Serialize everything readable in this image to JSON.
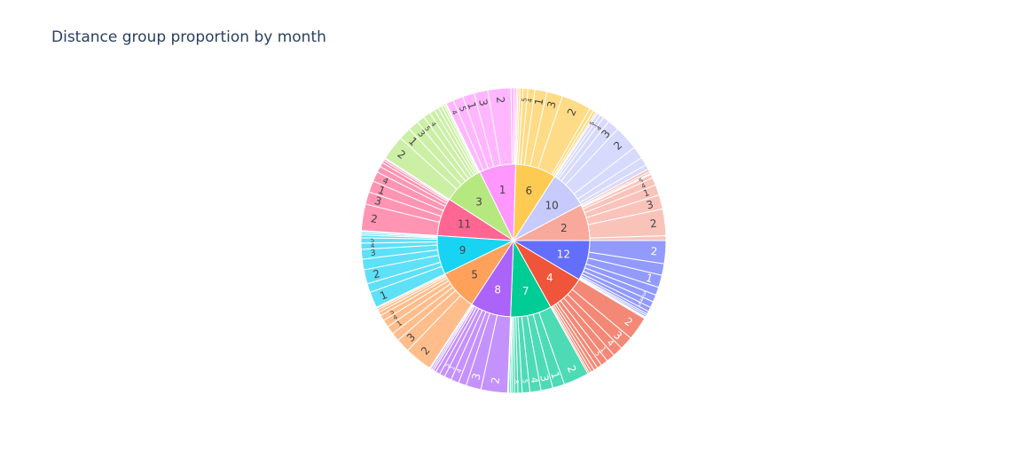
{
  "chart_data": {
    "type": "sunburst",
    "title": "Distance group proportion by month",
    "months": [
      {
        "label": "12",
        "color": "#636efa",
        "value": 8.6,
        "children": [
          {
            "label": "2",
            "value": 26
          },
          {
            "label": "",
            "value": 13
          },
          {
            "label": "1",
            "value": 14
          },
          {
            "label": "",
            "value": 9
          },
          {
            "label": "3",
            "value": 8
          },
          {
            "label": "4",
            "value": 7
          },
          {
            "label": "5",
            "value": 5
          },
          {
            "label": "",
            "value": 3
          },
          {
            "label": "",
            "value": 2
          },
          {
            "label": "",
            "value": 2
          },
          {
            "label": "",
            "value": 1
          },
          {
            "label": "",
            "value": 1
          }
        ]
      },
      {
        "label": "4",
        "color": "#ef553b",
        "value": 8.4,
        "children": [
          {
            "label": "2",
            "value": 30
          },
          {
            "label": "3",
            "value": 17
          },
          {
            "label": "4",
            "value": 13
          },
          {
            "label": "1",
            "value": 11
          },
          {
            "label": "5",
            "value": 9
          },
          {
            "label": "",
            "value": 6
          },
          {
            "label": "",
            "value": 5
          },
          {
            "label": "",
            "value": 4
          },
          {
            "label": "",
            "value": 3
          },
          {
            "label": "",
            "value": 2
          }
        ]
      },
      {
        "label": "7",
        "color": "#00cc96",
        "value": 8.8,
        "children": [
          {
            "label": "2",
            "value": 30
          },
          {
            "label": "1",
            "value": 14
          },
          {
            "label": "3",
            "value": 14
          },
          {
            "label": "4",
            "value": 13
          },
          {
            "label": "5",
            "value": 9
          },
          {
            "label": "",
            "value": 5
          },
          {
            "label": "8",
            "value": 4
          },
          {
            "label": "",
            "value": 3
          },
          {
            "label": "",
            "value": 2
          },
          {
            "label": "",
            "value": 2
          },
          {
            "label": "",
            "value": 1
          }
        ]
      },
      {
        "label": "8",
        "color": "#ab63fa",
        "value": 8.7,
        "children": [
          {
            "label": "2",
            "value": 30
          },
          {
            "label": "3",
            "value": 17
          },
          {
            "label": "",
            "value": 9
          },
          {
            "label": "4",
            "value": 9
          },
          {
            "label": "1",
            "value": 8
          },
          {
            "label": "5",
            "value": 6
          },
          {
            "label": "",
            "value": 5
          },
          {
            "label": "",
            "value": 3
          },
          {
            "label": "",
            "value": 2
          },
          {
            "label": "",
            "value": 2
          },
          {
            "label": "",
            "value": 1
          }
        ]
      },
      {
        "label": "5",
        "color": "#ffa15a",
        "value": 8.6,
        "children": [
          {
            "label": "2",
            "value": 30
          },
          {
            "label": "3",
            "value": 15
          },
          {
            "label": "",
            "value": 9
          },
          {
            "label": "1",
            "value": 9
          },
          {
            "label": "4",
            "value": 8
          },
          {
            "label": "5",
            "value": 6
          },
          {
            "label": "",
            "value": 4
          },
          {
            "label": "",
            "value": 3
          },
          {
            "label": "",
            "value": 2
          },
          {
            "label": "",
            "value": 1
          }
        ]
      },
      {
        "label": "9",
        "color": "#19d3f3",
        "value": 8.3,
        "children": [
          {
            "label": "1",
            "value": 18
          },
          {
            "label": "",
            "value": 10
          },
          {
            "label": "2",
            "value": 16
          },
          {
            "label": "",
            "value": 12
          },
          {
            "label": "3",
            "value": 11
          },
          {
            "label": "4",
            "value": 7
          },
          {
            "label": "5",
            "value": 6
          },
          {
            "label": "",
            "value": 3
          },
          {
            "label": "",
            "value": 2
          },
          {
            "label": "",
            "value": 2
          },
          {
            "label": "",
            "value": 1
          }
        ]
      },
      {
        "label": "11",
        "color": "#ff6692",
        "value": 8.1,
        "children": [
          {
            "label": "2",
            "value": 30
          },
          {
            "label": "3",
            "value": 14
          },
          {
            "label": "1",
            "value": 13
          },
          {
            "label": "4",
            "value": 11
          },
          {
            "label": "",
            "value": 7
          },
          {
            "label": "",
            "value": 5
          },
          {
            "label": "",
            "value": 3
          },
          {
            "label": "",
            "value": 2
          },
          {
            "label": "",
            "value": 1
          }
        ]
      },
      {
        "label": "3",
        "color": "#b6e880",
        "value": 8.7,
        "children": [
          {
            "label": "2",
            "value": 28
          },
          {
            "label": "1",
            "value": 14
          },
          {
            "label": "3",
            "value": 12
          },
          {
            "label": "5",
            "value": 9
          },
          {
            "label": "4",
            "value": 8
          },
          {
            "label": "",
            "value": 6
          },
          {
            "label": "",
            "value": 5
          },
          {
            "label": "",
            "value": 4
          },
          {
            "label": "",
            "value": 3
          },
          {
            "label": "",
            "value": 2
          },
          {
            "label": "",
            "value": 1
          }
        ]
      },
      {
        "label": "1",
        "color": "#ff97ff",
        "value": 7.8,
        "children": [
          {
            "label": "4",
            "value": 10
          },
          {
            "label": "5",
            "value": 13
          },
          {
            "label": "1",
            "value": 15
          },
          {
            "label": "3",
            "value": 18
          },
          {
            "label": "2",
            "value": 30
          },
          {
            "label": "",
            "value": 4
          },
          {
            "label": "",
            "value": 3
          },
          {
            "label": "",
            "value": 2
          }
        ]
      },
      {
        "label": "6",
        "color": "#fecb52",
        "value": 8.7,
        "children": [
          {
            "label": "",
            "value": 2
          },
          {
            "label": "",
            "value": 3
          },
          {
            "label": "5",
            "value": 5
          },
          {
            "label": "4",
            "value": 7
          },
          {
            "label": "1",
            "value": 12
          },
          {
            "label": "3",
            "value": 16
          },
          {
            "label": "2",
            "value": 30
          },
          {
            "label": "",
            "value": 4
          },
          {
            "label": "",
            "value": 3
          }
        ]
      },
      {
        "label": "10",
        "color": "#c6cafc",
        "value": 8.2,
        "children": [
          {
            "label": "",
            "value": 2
          },
          {
            "label": "5",
            "value": 4
          },
          {
            "label": "1",
            "value": 5
          },
          {
            "label": "4",
            "value": 8
          },
          {
            "label": "3",
            "value": 14
          },
          {
            "label": "2",
            "value": 30
          },
          {
            "label": "",
            "value": 15
          },
          {
            "label": "",
            "value": 10
          },
          {
            "label": "",
            "value": 6
          }
        ]
      },
      {
        "label": "2",
        "color": "#f8a99c",
        "value": 7.8,
        "children": [
          {
            "label": "",
            "value": 3
          },
          {
            "label": "",
            "value": 2
          },
          {
            "label": "",
            "value": 1
          },
          {
            "label": "5",
            "value": 4
          },
          {
            "label": "4",
            "value": 8
          },
          {
            "label": "1",
            "value": 11
          },
          {
            "label": "3",
            "value": 15
          },
          {
            "label": "2",
            "value": 28
          },
          {
            "label": "",
            "value": 5
          }
        ]
      }
    ]
  }
}
